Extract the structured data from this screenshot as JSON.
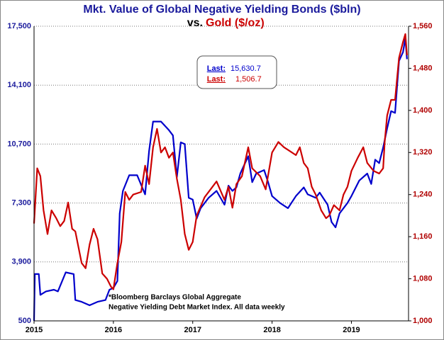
{
  "chart_data": {
    "type": "line",
    "title": "Mkt. Value of Global Negative Yielding Bonds ($bln)",
    "subtitle_lead": "vs.",
    "subtitle": "Gold ($/oz)",
    "footnote": [
      "*Bloomberg Barclays Global Aggregate",
      "Negative Yielding  Debt Market Index. All data weekly"
    ],
    "xlim": [
      2015,
      2019.72
    ],
    "xticks": [
      2015,
      2016,
      2017,
      2018,
      2019
    ],
    "ylim": [
      500,
      17500
    ],
    "yticks": [
      {
        "value": 500,
        "label": "500"
      },
      {
        "value": 3900,
        "label": "3,900"
      },
      {
        "value": 7300,
        "label": "7,300"
      },
      {
        "value": 10700,
        "label": "10,700"
      },
      {
        "value": 14100,
        "label": "14,100"
      },
      {
        "value": 17500,
        "label": "17,500"
      }
    ],
    "y2lim": [
      1000,
      1560
    ],
    "y2ticks": [
      {
        "value": 1000,
        "label": "1,000"
      },
      {
        "value": 1080,
        "label": "1,080"
      },
      {
        "value": 1160,
        "label": "1,160"
      },
      {
        "value": 1240,
        "label": "1,240"
      },
      {
        "value": 1320,
        "label": "1,320"
      },
      {
        "value": 1400,
        "label": "1,400"
      },
      {
        "value": 1480,
        "label": "1,480"
      },
      {
        "value": 1560,
        "label": "1,560"
      }
    ],
    "grid": true,
    "series": [
      {
        "name": "Negative Yielding Bonds",
        "color": "#0000cc",
        "axis": "y",
        "last_label": "Last:",
        "last_value_label": "15,630.7",
        "x": [
          2015.0,
          2015.01,
          2015.06,
          2015.08,
          2015.15,
          2015.25,
          2015.3,
          2015.4,
          2015.5,
          2015.52,
          2015.6,
          2015.7,
          2015.8,
          2015.9,
          2015.95,
          2016.0,
          2016.05,
          2016.08,
          2016.12,
          2016.2,
          2016.3,
          2016.4,
          2016.45,
          2016.5,
          2016.6,
          2016.7,
          2016.75,
          2016.8,
          2016.85,
          2016.9,
          2016.95,
          2017.0,
          2017.05,
          2017.1,
          2017.2,
          2017.3,
          2017.4,
          2017.45,
          2017.5,
          2017.55,
          2017.6,
          2017.7,
          2017.75,
          2017.8,
          2017.9,
          2017.95,
          2018.0,
          2018.1,
          2018.2,
          2018.3,
          2018.4,
          2018.45,
          2018.55,
          2018.6,
          2018.7,
          2018.75,
          2018.8,
          2018.85,
          2018.95,
          2019.0,
          2019.1,
          2019.2,
          2019.25,
          2019.3,
          2019.35,
          2019.4,
          2019.45,
          2019.5,
          2019.55,
          2019.6,
          2019.65,
          2019.68,
          2019.7
        ],
        "values": [
          500,
          3200,
          3200,
          2000,
          2200,
          2300,
          2200,
          3300,
          3200,
          1700,
          1600,
          1400,
          1600,
          1700,
          2300,
          2400,
          2800,
          6700,
          8000,
          8900,
          8900,
          7800,
          10300,
          12000,
          12000,
          11500,
          11200,
          8800,
          10800,
          10700,
          7600,
          7500,
          6400,
          7000,
          7600,
          8000,
          7200,
          8300,
          8000,
          8200,
          9000,
          10000,
          8500,
          9000,
          9200,
          8500,
          7700,
          7300,
          7000,
          7700,
          8200,
          7800,
          7600,
          7900,
          7200,
          6200,
          5900,
          6700,
          7300,
          7700,
          8600,
          9000,
          8400,
          9800,
          9600,
          10500,
          11600,
          12600,
          12500,
          15500,
          16000,
          16800,
          15600
        ]
      },
      {
        "name": "Gold",
        "color": "#cc0000",
        "axis": "y2",
        "last_label": "Last:",
        "last_value_label": "1,506.7",
        "x": [
          2015.0,
          2015.04,
          2015.08,
          2015.12,
          2015.17,
          2015.22,
          2015.28,
          2015.33,
          2015.38,
          2015.43,
          2015.48,
          2015.52,
          2015.6,
          2015.65,
          2015.7,
          2015.75,
          2015.8,
          2015.86,
          2015.92,
          2015.97,
          2016.0,
          2016.05,
          2016.1,
          2016.15,
          2016.2,
          2016.25,
          2016.35,
          2016.4,
          2016.45,
          2016.5,
          2016.55,
          2016.6,
          2016.65,
          2016.7,
          2016.75,
          2016.8,
          2016.85,
          2016.9,
          2016.95,
          2017.0,
          2017.05,
          2017.15,
          2017.25,
          2017.3,
          2017.4,
          2017.45,
          2017.5,
          2017.55,
          2017.62,
          2017.7,
          2017.75,
          2017.85,
          2017.92,
          2018.0,
          2018.08,
          2018.15,
          2018.2,
          2018.3,
          2018.35,
          2018.4,
          2018.45,
          2018.5,
          2018.55,
          2018.62,
          2018.68,
          2018.72,
          2018.78,
          2018.85,
          2018.9,
          2018.95,
          2019.0,
          2019.08,
          2019.15,
          2019.2,
          2019.28,
          2019.35,
          2019.4,
          2019.42,
          2019.45,
          2019.5,
          2019.55,
          2019.6,
          2019.65,
          2019.68,
          2019.7
        ],
        "values": [
          1185,
          1290,
          1275,
          1210,
          1165,
          1210,
          1195,
          1180,
          1190,
          1225,
          1175,
          1170,
          1110,
          1100,
          1145,
          1175,
          1155,
          1090,
          1080,
          1065,
          1060,
          1110,
          1150,
          1245,
          1230,
          1240,
          1245,
          1295,
          1260,
          1330,
          1365,
          1320,
          1330,
          1310,
          1320,
          1270,
          1230,
          1165,
          1135,
          1150,
          1200,
          1235,
          1255,
          1265,
          1230,
          1255,
          1215,
          1260,
          1275,
          1330,
          1290,
          1275,
          1250,
          1320,
          1340,
          1330,
          1325,
          1315,
          1330,
          1300,
          1290,
          1255,
          1240,
          1210,
          1195,
          1200,
          1220,
          1210,
          1240,
          1255,
          1285,
          1310,
          1330,
          1300,
          1285,
          1280,
          1290,
          1340,
          1390,
          1420,
          1420,
          1500,
          1530,
          1545,
          1505
        ]
      }
    ]
  }
}
